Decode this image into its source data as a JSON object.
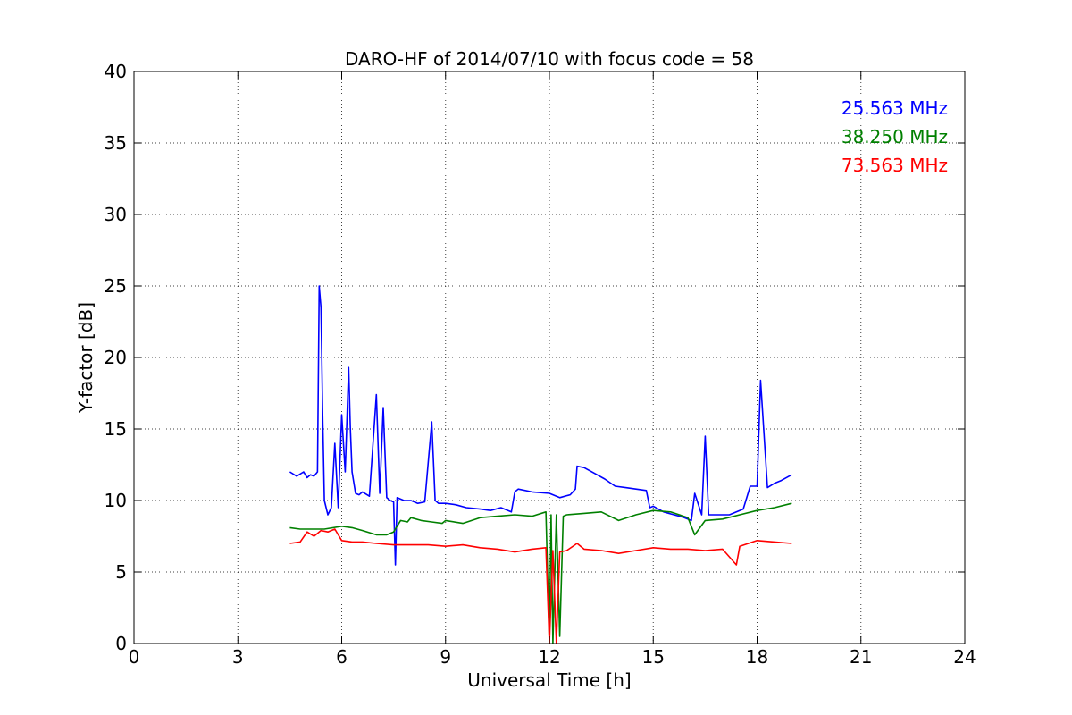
{
  "chart_data": {
    "type": "line",
    "title": "DARO-HF of 2014/07/10 with focus code = 58",
    "xlabel": "Universal Time [h]",
    "ylabel": "Y-factor [dB]",
    "xlim": [
      0,
      24
    ],
    "ylim": [
      0,
      40
    ],
    "xticks": [
      0,
      3,
      6,
      9,
      12,
      15,
      18,
      21,
      24
    ],
    "yticks": [
      0,
      5,
      10,
      15,
      20,
      25,
      30,
      35,
      40
    ],
    "xtick_labels": [
      "0",
      "3",
      "6",
      "9",
      "12",
      "15",
      "18",
      "21",
      "24"
    ],
    "ytick_labels": [
      "0",
      "5",
      "10",
      "15",
      "20",
      "25",
      "30",
      "35",
      "40"
    ],
    "grid": true,
    "legend_position": "top-right",
    "series": [
      {
        "name": "25.563 MHz",
        "color": "#0000ff",
        "x": [
          4.5,
          4.7,
          4.9,
          5.0,
          5.1,
          5.2,
          5.3,
          5.35,
          5.4,
          5.45,
          5.5,
          5.6,
          5.7,
          5.8,
          5.9,
          6.0,
          6.1,
          6.2,
          6.25,
          6.3,
          6.4,
          6.5,
          6.6,
          6.8,
          7.0,
          7.1,
          7.2,
          7.3,
          7.4,
          7.5,
          7.55,
          7.6,
          7.8,
          8.0,
          8.2,
          8.4,
          8.6,
          8.7,
          8.8,
          9.0,
          9.3,
          9.6,
          10.0,
          10.3,
          10.6,
          10.9,
          11.0,
          11.1,
          11.5,
          12.0,
          12.3,
          12.6,
          12.75,
          12.8,
          13.0,
          13.3,
          13.6,
          13.9,
          14.2,
          14.5,
          14.8,
          14.9,
          15.0,
          15.3,
          15.6,
          15.9,
          16.1,
          16.2,
          16.4,
          16.5,
          16.6,
          16.9,
          17.2,
          17.4,
          17.6,
          17.8,
          18.0,
          18.1,
          18.3,
          18.5,
          18.7,
          19.0
        ],
        "y": [
          12.0,
          11.7,
          12.0,
          11.6,
          11.8,
          11.7,
          12.0,
          25.0,
          23.5,
          16.0,
          10.0,
          9.0,
          9.5,
          14.0,
          9.5,
          16.0,
          12.0,
          19.3,
          15.0,
          12.0,
          10.5,
          10.4,
          10.6,
          10.3,
          17.4,
          10.5,
          16.5,
          10.2,
          10.0,
          9.9,
          5.5,
          10.2,
          10.0,
          10.0,
          9.8,
          9.9,
          15.5,
          10.0,
          9.8,
          9.8,
          9.7,
          9.5,
          9.4,
          9.3,
          9.5,
          9.2,
          10.6,
          10.8,
          10.6,
          10.5,
          10.2,
          10.4,
          10.8,
          12.4,
          12.3,
          11.9,
          11.5,
          11.0,
          10.9,
          10.8,
          10.7,
          9.5,
          9.6,
          9.2,
          9.0,
          8.8,
          8.6,
          10.5,
          9.0,
          14.5,
          9.0,
          9.0,
          9.0,
          9.2,
          9.4,
          11.0,
          11.0,
          18.4,
          10.9,
          11.2,
          11.4,
          11.8
        ]
      },
      {
        "name": "38.250 MHz",
        "color": "#008000",
        "x": [
          4.5,
          4.8,
          5.0,
          5.5,
          6.0,
          6.3,
          6.6,
          7.0,
          7.3,
          7.5,
          7.7,
          7.9,
          8.0,
          8.3,
          8.6,
          8.9,
          9.0,
          9.5,
          10.0,
          10.5,
          11.0,
          11.5,
          11.9,
          12.0,
          12.05,
          12.1,
          12.2,
          12.3,
          12.4,
          12.5,
          13.0,
          13.5,
          14.0,
          14.5,
          15.0,
          15.5,
          16.0,
          16.2,
          16.5,
          17.0,
          17.5,
          18.0,
          18.5,
          19.0
        ],
        "y": [
          8.1,
          8.0,
          8.0,
          8.0,
          8.2,
          8.1,
          7.9,
          7.6,
          7.6,
          7.8,
          8.6,
          8.5,
          8.8,
          8.6,
          8.5,
          8.4,
          8.6,
          8.4,
          8.8,
          8.9,
          9.0,
          8.9,
          9.2,
          0.0,
          9.0,
          0.0,
          9.0,
          0.5,
          8.9,
          9.0,
          9.1,
          9.2,
          8.6,
          9.0,
          9.3,
          9.2,
          8.8,
          7.6,
          8.6,
          8.7,
          9.0,
          9.3,
          9.5,
          9.8
        ]
      },
      {
        "name": "73.563 MHz",
        "color": "#ff0000",
        "x": [
          4.5,
          4.8,
          5.0,
          5.2,
          5.4,
          5.6,
          5.8,
          6.0,
          6.3,
          6.6,
          7.0,
          7.5,
          8.0,
          8.5,
          9.0,
          9.5,
          10.0,
          10.5,
          11.0,
          11.5,
          11.9,
          12.0,
          12.1,
          12.2,
          12.3,
          12.5,
          12.8,
          13.0,
          13.5,
          14.0,
          14.5,
          15.0,
          15.5,
          16.0,
          16.5,
          17.0,
          17.4,
          17.5,
          18.0,
          18.5,
          19.0
        ],
        "y": [
          7.0,
          7.1,
          7.8,
          7.5,
          7.9,
          7.8,
          8.0,
          7.2,
          7.1,
          7.1,
          7.0,
          6.9,
          6.9,
          6.9,
          6.8,
          6.9,
          6.7,
          6.6,
          6.4,
          6.6,
          6.7,
          0.0,
          6.5,
          0.0,
          6.4,
          6.5,
          7.0,
          6.6,
          6.5,
          6.3,
          6.5,
          6.7,
          6.6,
          6.6,
          6.5,
          6.6,
          5.5,
          6.8,
          7.2,
          7.1,
          7.0
        ]
      }
    ]
  }
}
